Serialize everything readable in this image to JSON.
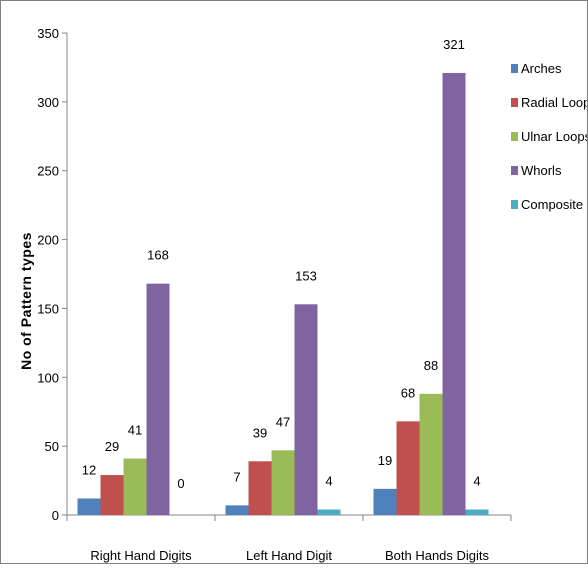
{
  "chart_data": {
    "type": "bar",
    "categories": [
      "Right Hand Digits",
      "Left Hand Digit",
      "Both Hands Digits"
    ],
    "series": [
      {
        "name": "Arches",
        "color": "#4F81BD",
        "values": [
          12,
          7,
          19
        ]
      },
      {
        "name": "Radial Loops",
        "color": "#C0504D",
        "values": [
          29,
          39,
          68
        ]
      },
      {
        "name": "Ulnar Loops",
        "color": "#9BBB59",
        "values": [
          41,
          47,
          88
        ]
      },
      {
        "name": "Whorls",
        "color": "#8064A2",
        "values": [
          168,
          153,
          321
        ]
      },
      {
        "name": "Composite",
        "color": "#4BACC6",
        "values": [
          0,
          4,
          4
        ]
      }
    ],
    "data_labels": [
      [
        "12",
        "29",
        "41",
        "168",
        "0"
      ],
      [
        "7",
        "39",
        "47",
        "153",
        "4"
      ],
      [
        "19",
        "68",
        "88",
        "321",
        "4"
      ]
    ],
    "ylabel": "No of Pattern types",
    "xlabel": "",
    "ylim": [
      0,
      350
    ],
    "y_ticks": [
      "0",
      "50",
      "100",
      "150",
      "200",
      "250",
      "300",
      "350"
    ],
    "grid": false,
    "legend_position": "right"
  }
}
